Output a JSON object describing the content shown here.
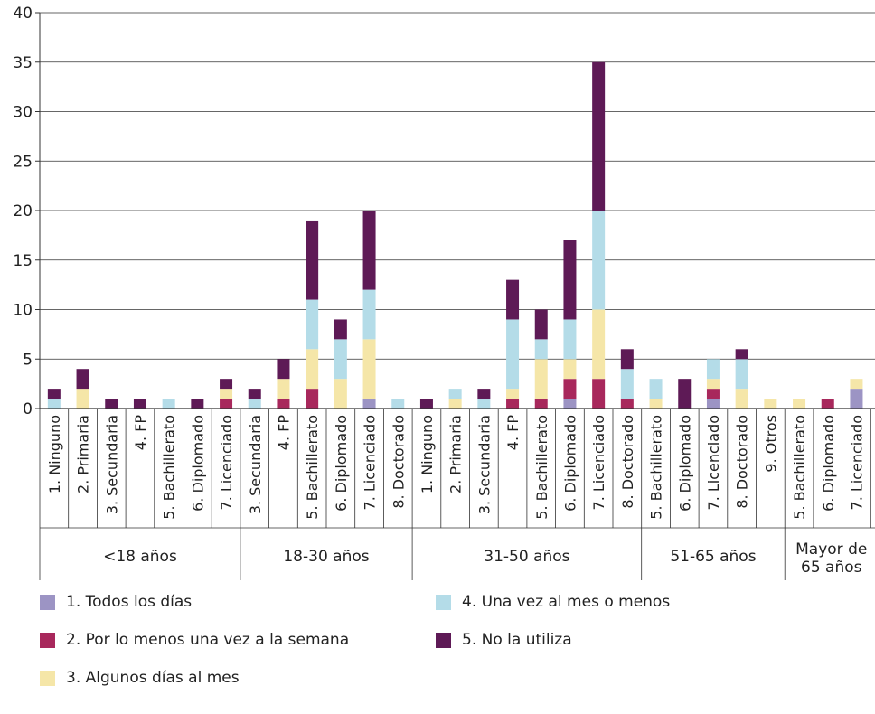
{
  "chart_data": {
    "type": "bar",
    "stacked": true,
    "ylim": [
      0,
      40
    ],
    "yticks": [
      0,
      5,
      10,
      15,
      20,
      25,
      30,
      35,
      40
    ],
    "grid": true,
    "legend_position": "bottom",
    "series": [
      {
        "name": "1. Todos los días",
        "color": "#9c94c4"
      },
      {
        "name": "2. Por lo menos una vez  a la semana",
        "color": "#a8285c"
      },
      {
        "name": "3. Algunos días al mes",
        "color": "#f5e6a8"
      },
      {
        "name": "4. Una vez al mes o menos",
        "color": "#b4dce8"
      },
      {
        "name": "5. No la utiliza",
        "color": "#5e1a56"
      }
    ],
    "groups": [
      {
        "label": "<18 años",
        "categories": [
          {
            "label": "1. Ninguno",
            "values": [
              0,
              0,
              0,
              1,
              1
            ]
          },
          {
            "label": "2. Primaria",
            "values": [
              0,
              0,
              2,
              0,
              2
            ]
          },
          {
            "label": "3. Secundaria",
            "values": [
              0,
              0,
              0,
              0,
              1
            ]
          },
          {
            "label": "4. FP",
            "values": [
              0,
              0,
              0,
              0,
              1
            ]
          },
          {
            "label": "5. Bachillerato",
            "values": [
              0,
              0,
              0,
              1,
              0
            ]
          },
          {
            "label": "6. Diplomado",
            "values": [
              0,
              0,
              0,
              0,
              1
            ]
          },
          {
            "label": "7. Licenciado",
            "values": [
              0,
              1,
              1,
              0,
              1
            ]
          }
        ]
      },
      {
        "label": "18-30 años",
        "categories": [
          {
            "label": "3. Secundaria",
            "values": [
              0,
              0,
              0,
              1,
              1
            ]
          },
          {
            "label": "4. FP",
            "values": [
              0,
              1,
              2,
              0,
              2
            ]
          },
          {
            "label": "5. Bachillerato",
            "values": [
              0,
              2,
              4,
              5,
              8
            ]
          },
          {
            "label": "6. Diplomado",
            "values": [
              0,
              0,
              3,
              4,
              2
            ]
          },
          {
            "label": "7. Licenciado",
            "values": [
              1,
              0,
              6,
              5,
              8
            ]
          },
          {
            "label": "8. Doctorado",
            "values": [
              0,
              0,
              0,
              1,
              0
            ]
          }
        ]
      },
      {
        "label": "31-50 años",
        "categories": [
          {
            "label": "1. Ninguno",
            "values": [
              0,
              0,
              0,
              0,
              1
            ]
          },
          {
            "label": "2. Primaria",
            "values": [
              0,
              0,
              1,
              1,
              0
            ]
          },
          {
            "label": "3. Secundaria",
            "values": [
              0,
              0,
              0,
              1,
              1
            ]
          },
          {
            "label": "4. FP",
            "values": [
              0,
              1,
              1,
              7,
              4
            ]
          },
          {
            "label": "5. Bachillerato",
            "values": [
              0,
              1,
              4,
              2,
              3
            ]
          },
          {
            "label": "6. Diplomado",
            "values": [
              1,
              2,
              2,
              4,
              8
            ]
          },
          {
            "label": "7. Licenciado",
            "values": [
              0,
              3,
              7,
              10,
              15
            ]
          },
          {
            "label": "8. Doctorado",
            "values": [
              0,
              1,
              0,
              3,
              2
            ]
          }
        ]
      },
      {
        "label": "51-65 años",
        "categories": [
          {
            "label": "5. Bachillerato",
            "values": [
              0,
              0,
              1,
              2,
              0
            ]
          },
          {
            "label": "6. Diplomado",
            "values": [
              0,
              0,
              0,
              0,
              3
            ]
          },
          {
            "label": "7. Licenciado",
            "values": [
              1,
              1,
              1,
              2,
              0
            ]
          },
          {
            "label": "8. Doctorado",
            "values": [
              0,
              0,
              2,
              3,
              1
            ]
          },
          {
            "label": "9. Otros",
            "values": [
              0,
              0,
              1,
              0,
              0
            ]
          }
        ]
      },
      {
        "label": "Mayor de 65 años",
        "label_lines": [
          "Mayor de",
          "65 años"
        ],
        "categories": [
          {
            "label": "5. Bachillerato",
            "values": [
              0,
              0,
              1,
              0,
              0
            ]
          },
          {
            "label": "6. Diplomado",
            "values": [
              0,
              1,
              0,
              0,
              0
            ]
          },
          {
            "label": "7. Licenciado",
            "values": [
              2,
              0,
              1,
              0,
              0
            ]
          }
        ]
      }
    ]
  }
}
